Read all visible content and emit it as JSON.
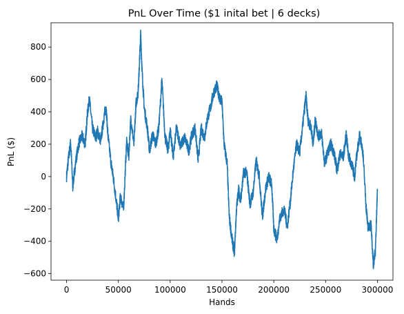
{
  "chart_data": {
    "type": "line",
    "title": "PnL Over Time ($1 inital bet | 6 decks)",
    "xlabel": "Hands",
    "ylabel": "PnL ($)",
    "xlim": [
      -15000,
      315000
    ],
    "ylim": [
      -640,
      950
    ],
    "xticks": [
      0,
      50000,
      100000,
      150000,
      200000,
      250000,
      300000
    ],
    "xtick_labels": [
      "0",
      "50000",
      "100000",
      "150000",
      "200000",
      "250000",
      "300000"
    ],
    "yticks": [
      -600,
      -400,
      -200,
      0,
      200,
      400,
      600,
      800
    ],
    "ytick_labels": [
      "−600",
      "−400",
      "−200",
      "0",
      "200",
      "400",
      "600",
      "800"
    ],
    "grid": false,
    "color": "#1f77b4",
    "series": [
      {
        "x": [
          0,
          2000,
          4000,
          6000,
          9000,
          12000,
          15000,
          18000,
          20000,
          22000,
          25000,
          28000,
          30000,
          33000,
          36000,
          38000,
          40000,
          43000,
          45000,
          48000,
          50000,
          52000,
          55000,
          58000,
          60000,
          62000,
          65000,
          67000,
          69000,
          70000,
          71500,
          73000,
          75000,
          78000,
          80000,
          83000,
          86000,
          89000,
          92000,
          95000,
          98000,
          100000,
          103000,
          106000,
          110000,
          114000,
          118000,
          121000,
          124000,
          127000,
          130000,
          133000,
          136000,
          139000,
          142000,
          145000,
          148000,
          150000,
          152000,
          155000,
          157000,
          160000,
          162000,
          164000,
          166000,
          168000,
          171000,
          174000,
          177000,
          180000,
          183000,
          186000,
          189000,
          192000,
          195000,
          198000,
          200000,
          203000,
          206000,
          210000,
          213000,
          216000,
          219000,
          222000,
          225000,
          228000,
          231000,
          233000,
          236000,
          238000,
          240000,
          243000,
          246000,
          249000,
          252000,
          255000,
          258000,
          261000,
          264000,
          267000,
          270000,
          272000,
          275000,
          278000,
          280000,
          283000,
          286000,
          289000,
          291000,
          294000,
          296000,
          298000,
          300000
        ],
        "y": [
          0,
          120,
          210,
          -60,
          100,
          210,
          250,
          200,
          380,
          480,
          300,
          240,
          280,
          220,
          360,
          440,
          250,
          80,
          0,
          -150,
          -260,
          -120,
          -200,
          220,
          120,
          360,
          200,
          450,
          520,
          650,
          880,
          640,
          420,
          300,
          160,
          260,
          200,
          300,
          600,
          250,
          160,
          290,
          120,
          300,
          190,
          240,
          160,
          260,
          300,
          100,
          300,
          240,
          360,
          430,
          520,
          560,
          480,
          460,
          200,
          80,
          -250,
          -400,
          -470,
          -200,
          -80,
          -150,
          30,
          20,
          -170,
          -100,
          100,
          0,
          -250,
          -80,
          0,
          -50,
          -320,
          -390,
          -250,
          -200,
          -310,
          -150,
          50,
          200,
          150,
          320,
          500,
          350,
          300,
          200,
          350,
          250,
          270,
          80,
          150,
          200,
          150,
          40,
          140,
          120,
          260,
          130,
          80,
          0,
          130,
          260,
          150,
          -180,
          -320,
          -300,
          -540,
          -470,
          -80
        ]
      }
    ]
  }
}
